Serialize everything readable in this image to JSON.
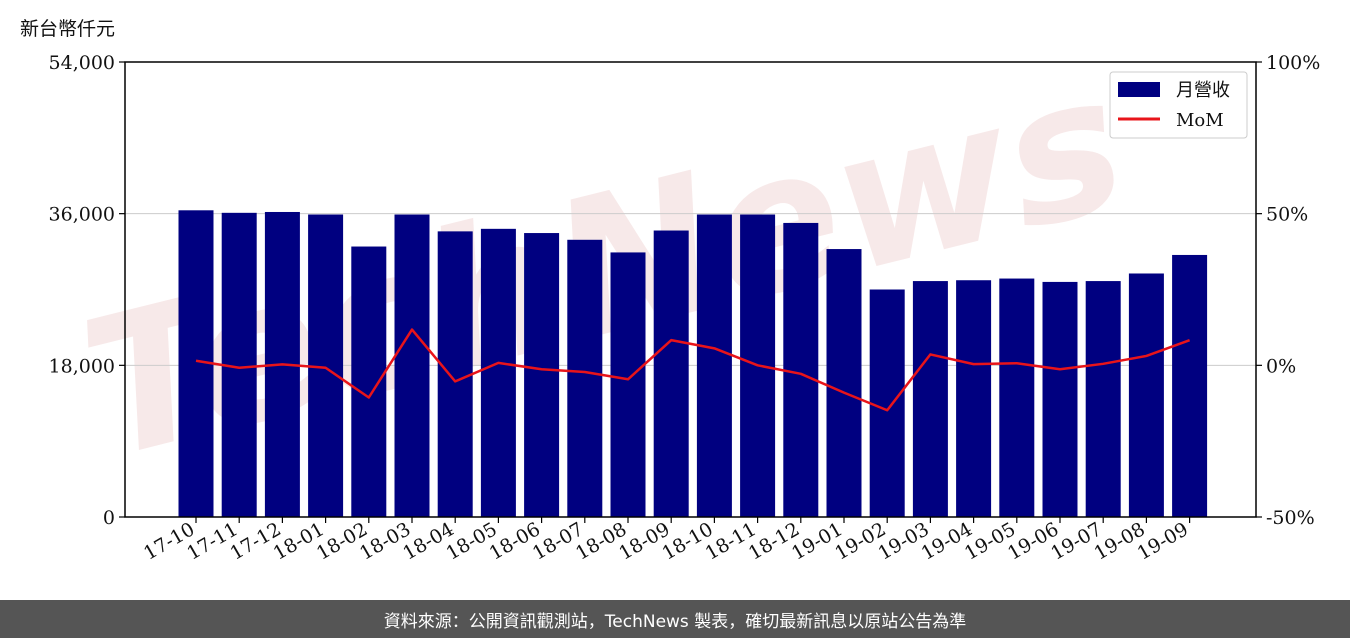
{
  "unit_label": "新台幣仟元",
  "watermark": "TechNews",
  "footer_text": "資料來源：公開資訊觀測站，TechNews 製表，確切最新訊息以原站公告為準",
  "colors": {
    "bar": "#000080",
    "line": "#e8141a",
    "watermark": "#f2d8d8",
    "footer_bg": "#555555"
  },
  "chart_data": {
    "type": "bar",
    "categories": [
      "17-10",
      "17-11",
      "17-12",
      "18-01",
      "18-02",
      "18-03",
      "18-04",
      "18-05",
      "18-06",
      "18-07",
      "18-08",
      "18-09",
      "18-10",
      "18-11",
      "18-12",
      "19-01",
      "19-02",
      "19-03",
      "19-04",
      "19-05",
      "19-06",
      "19-07",
      "19-08",
      "19-09"
    ],
    "series": [
      {
        "name": "月營收",
        "kind": "bar",
        "axis": "left",
        "values": [
          36400,
          36100,
          36200,
          35900,
          32100,
          35900,
          33900,
          34200,
          33700,
          32900,
          31400,
          34000,
          35900,
          35900,
          34900,
          31800,
          27000,
          28000,
          28100,
          28300,
          27900,
          28000,
          28900,
          31100
        ]
      },
      {
        "name": "MoM",
        "kind": "line",
        "axis": "right",
        "values": [
          1.5,
          -0.8,
          0.3,
          -0.8,
          -10.6,
          11.8,
          -5.3,
          0.8,
          -1.3,
          -2.2,
          -4.6,
          8.3,
          5.6,
          0,
          -2.8,
          -9,
          -14.8,
          3.6,
          0.4,
          0.7,
          -1.3,
          0.5,
          3.1,
          8.3
        ]
      }
    ],
    "y_left": {
      "min": 0,
      "max": 54000,
      "ticks": [
        0,
        18000,
        36000,
        54000
      ],
      "tick_labels": [
        "0",
        "18,000",
        "36,000",
        "54,000"
      ]
    },
    "y_right": {
      "min": -50,
      "max": 100,
      "ticks": [
        -50,
        0,
        50,
        100
      ],
      "tick_labels": [
        "-50%",
        "0%",
        "50%",
        "100%"
      ]
    },
    "grid": "horizontal",
    "legend_position": "top-right"
  }
}
